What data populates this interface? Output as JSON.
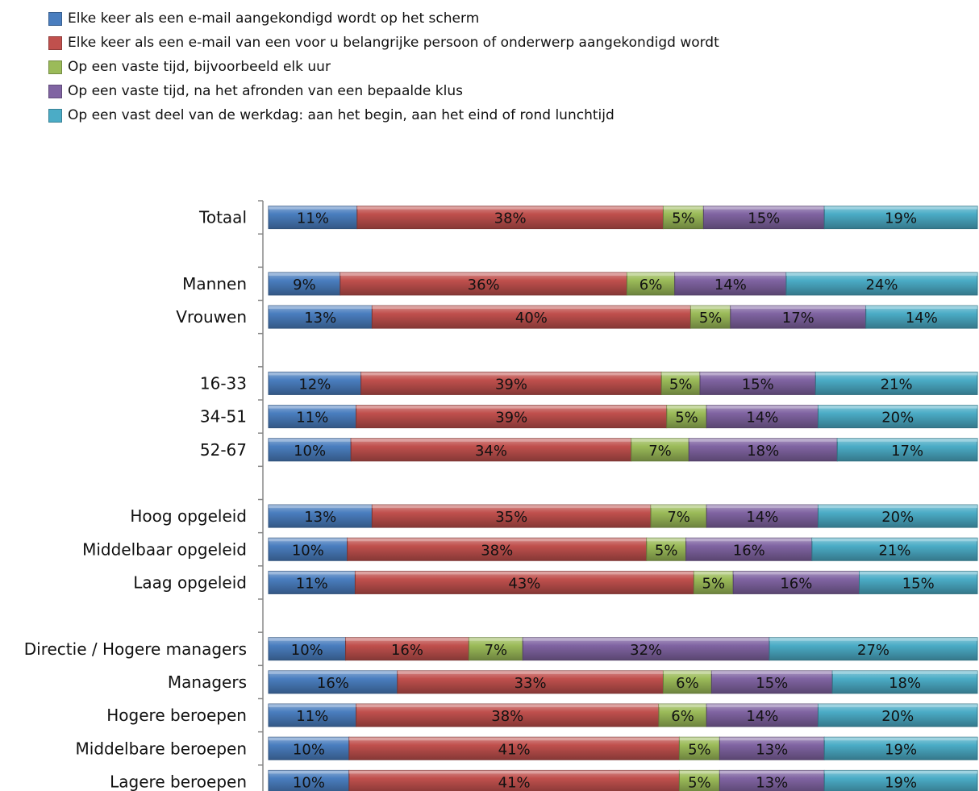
{
  "chart_data": {
    "type": "bar",
    "orientation": "horizontal",
    "stacked": true,
    "percent_stacked": true,
    "legend_position": "top-left",
    "grid": false,
    "categories": [
      "Totaal",
      "",
      "Mannen",
      "Vrouwen",
      "",
      "16-33",
      "34-51",
      "52-67",
      "",
      "Hoog opgeleid",
      "Middelbaar opgeleid",
      "Laag opgeleid",
      "",
      "Directie / Hogere managers",
      "Managers",
      "Hogere beroepen",
      "Middelbare beroepen",
      "Lagere beroepen"
    ],
    "series": [
      {
        "name": "Elke keer als een e-mail aangekondigd wordt op het scherm",
        "color": "#4a7ebf",
        "values": [
          11,
          null,
          9,
          13,
          null,
          12,
          11,
          10,
          null,
          13,
          10,
          11,
          null,
          10,
          16,
          11,
          10,
          10
        ]
      },
      {
        "name": "Elke keer als een e-mail van een voor u belangrijke persoon of onderwerp aangekondigd wordt",
        "color": "#c0504d",
        "values": [
          38,
          null,
          36,
          40,
          null,
          39,
          39,
          34,
          null,
          35,
          38,
          43,
          null,
          16,
          33,
          38,
          41,
          41
        ]
      },
      {
        "name": "Op een vaste tijd, bijvoorbeeld elk uur",
        "color": "#9bbb59",
        "values": [
          5,
          null,
          6,
          5,
          null,
          5,
          5,
          7,
          null,
          7,
          5,
          5,
          null,
          7,
          6,
          6,
          5,
          5
        ]
      },
      {
        "name": "Op een vaste tijd, na het afronden van een bepaalde klus",
        "color": "#8064a2",
        "values": [
          15,
          null,
          14,
          17,
          null,
          15,
          14,
          18,
          null,
          14,
          16,
          16,
          null,
          32,
          15,
          14,
          13,
          13
        ]
      },
      {
        "name": "Op een vast deel van de werkdag: aan het begin, aan het eind of rond lunchtijd",
        "color": "#4bacc6",
        "values": [
          19,
          null,
          24,
          14,
          null,
          21,
          20,
          17,
          null,
          20,
          21,
          15,
          null,
          27,
          18,
          20,
          19,
          19
        ]
      }
    ]
  }
}
